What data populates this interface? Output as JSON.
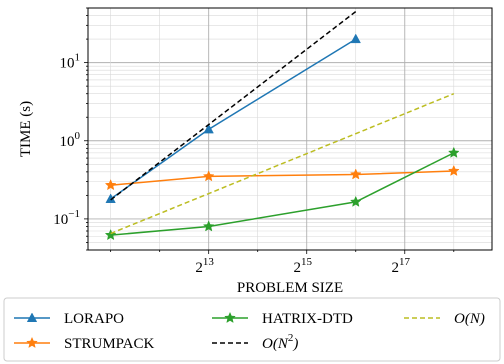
{
  "chart_data": {
    "type": "line",
    "title": "",
    "xlabel": "PROBLEM SIZE",
    "ylabel": "TIME (s)",
    "xscale": "log2",
    "yscale": "log10",
    "xlim": [
      1487,
      450000
    ],
    "ylim": [
      0.04,
      50
    ],
    "x_ticks": [
      {
        "value": 8192,
        "base": "2",
        "exp": "13"
      },
      {
        "value": 32768,
        "base": "2",
        "exp": "15"
      },
      {
        "value": 131072,
        "base": "2",
        "exp": "17"
      }
    ],
    "y_ticks": [
      {
        "value": 0.1,
        "base": "10",
        "exp": "−1"
      },
      {
        "value": 1,
        "base": "10",
        "exp": "0"
      },
      {
        "value": 10,
        "base": "10",
        "exp": "1"
      }
    ],
    "grid": true,
    "legend_position": "below",
    "series": [
      {
        "name": "LORAPO",
        "color": "#1f77b4",
        "style": "solid",
        "marker": "triangle",
        "x": [
          2048,
          8192,
          65536
        ],
        "y": [
          0.18,
          1.4,
          20
        ]
      },
      {
        "name": "STRUMPACK",
        "color": "#ff7f0e",
        "style": "solid",
        "marker": "star",
        "x": [
          2048,
          8192,
          65536,
          262144
        ],
        "y": [
          0.27,
          0.35,
          0.37,
          0.41
        ]
      },
      {
        "name": "HATRIX-DTD",
        "color": "#2ca02c",
        "style": "solid",
        "marker": "star",
        "x": [
          2048,
          8192,
          65536,
          262144
        ],
        "y": [
          0.062,
          0.08,
          0.165,
          0.7
        ]
      },
      {
        "name_parts": [
          "O(N",
          "2",
          ")"
        ],
        "color": "#000000",
        "style": "dashed",
        "marker": "none",
        "x": [
          2048,
          65536
        ],
        "y": [
          0.175,
          45
        ]
      },
      {
        "name_parts": [
          "O(N)"
        ],
        "color": "#bcbd22",
        "style": "dashed",
        "marker": "none",
        "x": [
          2048,
          262144
        ],
        "y": [
          0.065,
          4.0
        ]
      }
    ]
  }
}
